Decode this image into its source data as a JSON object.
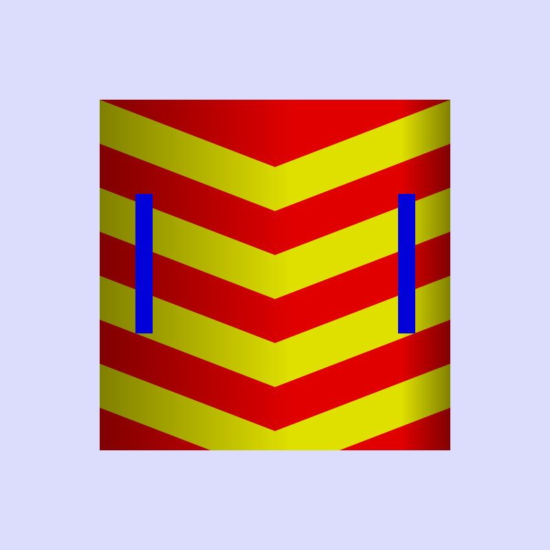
{
  "scene": {
    "subject": "chevron-banner",
    "chevron_count": 4,
    "colors": {
      "background": "#dcdcfc",
      "field": "#e00000",
      "field_shade": "#800000",
      "chevron": "#e0e000",
      "chevron_shade": "#808000",
      "pallet": "#0000d8"
    }
  }
}
